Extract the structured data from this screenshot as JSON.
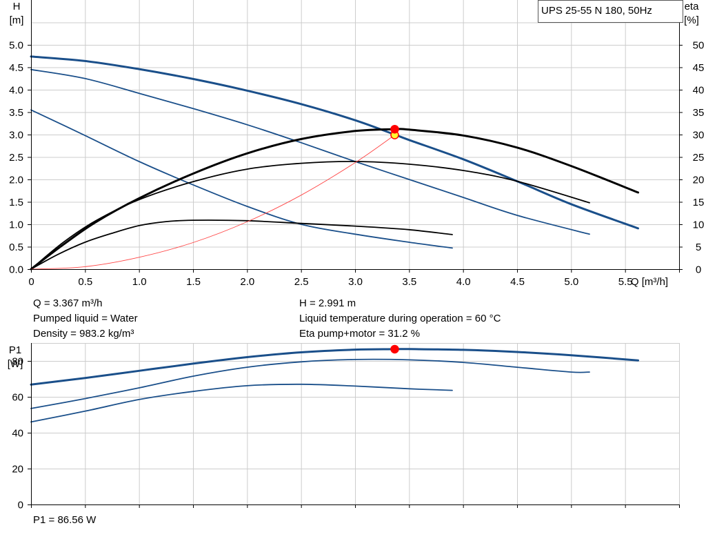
{
  "title": "UPS 25-55 N 180, 50Hz",
  "info": {
    "q": "Q = 3.367 m³/h",
    "liquid": "Pumped liquid = Water",
    "density": "Density = 983.2 kg/m³",
    "h": "H = 2.991 m",
    "temp": "Liquid temperature during operation = 60 °C",
    "eta": "Eta pump+motor = 31.2 %",
    "p1": "P1 = 86.56 W"
  },
  "chart_data": [
    {
      "type": "line",
      "xlabel": "Q [m³/h]",
      "ylabel": "H\n[m]",
      "y2label": "eta\n[%]",
      "xlim": [
        0,
        6
      ],
      "ylim": [
        0,
        5.0
      ],
      "y2lim": [
        0,
        50
      ],
      "xticks": [
        "0",
        "0.5",
        "1.0",
        "1.5",
        "2.0",
        "2.5",
        "3.0",
        "3.5",
        "4.0",
        "4.5",
        "5.0",
        "5.5"
      ],
      "yticks": [
        "0.0",
        "0.5",
        "1.0",
        "1.5",
        "2.0",
        "2.5",
        "3.0",
        "3.5",
        "4.0",
        "4.5",
        "5.0"
      ],
      "y2ticks": [
        "0",
        "5",
        "10",
        "15",
        "20",
        "25",
        "30",
        "35",
        "40",
        "45",
        "50"
      ],
      "grid": true,
      "series": [
        {
          "kind": "head",
          "axis": "left",
          "color": "#1a4f8a",
          "points": [
            [
              0,
              3.55
            ],
            [
              0.5,
              2.98
            ],
            [
              1.0,
              2.4
            ],
            [
              1.5,
              1.88
            ],
            [
              2.0,
              1.4
            ],
            [
              2.5,
              1.0
            ],
            [
              3.0,
              0.78
            ],
            [
              3.5,
              0.6
            ],
            [
              3.9,
              0.47
            ]
          ]
        },
        {
          "kind": "head",
          "axis": "left",
          "color": "#1a4f8a",
          "points": [
            [
              0,
              4.45
            ],
            [
              0.5,
              4.25
            ],
            [
              1.0,
              3.92
            ],
            [
              1.5,
              3.58
            ],
            [
              2.0,
              3.22
            ],
            [
              2.5,
              2.82
            ],
            [
              3.0,
              2.4
            ],
            [
              3.5,
              2.0
            ],
            [
              4.0,
              1.6
            ],
            [
              4.5,
              1.2
            ],
            [
              5.17,
              0.78
            ]
          ]
        },
        {
          "kind": "head",
          "axis": "left",
          "color": "#1a4f8a",
          "bold": true,
          "points": [
            [
              0,
              4.74
            ],
            [
              0.5,
              4.64
            ],
            [
              1.0,
              4.46
            ],
            [
              1.5,
              4.24
            ],
            [
              2.0,
              3.98
            ],
            [
              2.5,
              3.68
            ],
            [
              3.0,
              3.32
            ],
            [
              3.367,
              3.0
            ],
            [
              3.5,
              2.88
            ],
            [
              4.0,
              2.45
            ],
            [
              4.5,
              1.96
            ],
            [
              5.0,
              1.45
            ],
            [
              5.62,
              0.91
            ]
          ]
        },
        {
          "kind": "eta",
          "axis": "right",
          "color": "#000000",
          "points": [
            [
              0,
              0
            ],
            [
              0.25,
              3.3
            ],
            [
              0.5,
              6.0
            ],
            [
              0.75,
              8.0
            ],
            [
              1.0,
              9.7
            ],
            [
              1.25,
              10.6
            ],
            [
              1.5,
              10.9
            ],
            [
              2.0,
              10.8
            ],
            [
              2.5,
              10.2
            ],
            [
              3.0,
              9.6
            ],
            [
              3.5,
              8.8
            ],
            [
              3.9,
              7.7
            ]
          ]
        },
        {
          "kind": "eta",
          "axis": "right",
          "color": "#000000",
          "points": [
            [
              0,
              0
            ],
            [
              0.3,
              6.0
            ],
            [
              0.6,
              10.8
            ],
            [
              1.0,
              15.5
            ],
            [
              1.5,
              19.5
            ],
            [
              2.0,
              22.3
            ],
            [
              2.5,
              23.6
            ],
            [
              3.0,
              24.0
            ],
            [
              3.5,
              23.4
            ],
            [
              4.0,
              22.0
            ],
            [
              4.5,
              19.6
            ],
            [
              5.17,
              14.8
            ]
          ]
        },
        {
          "kind": "eta",
          "axis": "right",
          "color": "#000000",
          "bold": true,
          "points": [
            [
              0,
              0
            ],
            [
              0.3,
              5.5
            ],
            [
              0.6,
              10.5
            ],
            [
              1.0,
              15.8
            ],
            [
              1.5,
              21.3
            ],
            [
              2.0,
              25.8
            ],
            [
              2.5,
              29.0
            ],
            [
              3.0,
              30.8
            ],
            [
              3.367,
              31.2
            ],
            [
              3.5,
              31.1
            ],
            [
              4.0,
              29.8
            ],
            [
              4.5,
              27.1
            ],
            [
              5.0,
              23.0
            ],
            [
              5.62,
              17.1
            ]
          ]
        },
        {
          "kind": "system",
          "axis": "left",
          "color": "#ff4444",
          "points": [
            [
              0,
              0
            ],
            [
              0.5,
              0.055
            ],
            [
              1.0,
              0.264
            ],
            [
              1.5,
              0.593
            ],
            [
              2.0,
              1.055
            ],
            [
              2.5,
              1.649
            ],
            [
              3.0,
              2.374
            ],
            [
              3.367,
              2.991
            ]
          ]
        }
      ],
      "markers": [
        {
          "axis": "left",
          "x": 3.367,
          "y": 2.991,
          "fill": "#ffff33",
          "stroke": "#ff0000"
        },
        {
          "axis": "right",
          "x": 3.367,
          "y": 31.2,
          "fill": "#ff0000",
          "stroke": "#ff0000"
        }
      ]
    },
    {
      "type": "line",
      "ylabel": "P1\n[W]",
      "xlim": [
        0,
        6
      ],
      "ylim": [
        0,
        90
      ],
      "yticks": [
        "0",
        "20",
        "40",
        "60",
        "80"
      ],
      "grid": true,
      "series": [
        {
          "kind": "power",
          "color": "#1a4f8a",
          "points": [
            [
              0,
              46
            ],
            [
              0.5,
              52
            ],
            [
              1.0,
              58.5
            ],
            [
              1.5,
              63
            ],
            [
              2.0,
              66.2
            ],
            [
              2.5,
              67
            ],
            [
              3.0,
              66
            ],
            [
              3.5,
              64.5
            ],
            [
              3.9,
              63.6
            ]
          ]
        },
        {
          "kind": "power",
          "color": "#1a4f8a",
          "points": [
            [
              0,
              53.5
            ],
            [
              0.5,
              59
            ],
            [
              1.0,
              65
            ],
            [
              1.5,
              71.5
            ],
            [
              2.0,
              76.5
            ],
            [
              2.5,
              79.5
            ],
            [
              3.0,
              80.8
            ],
            [
              3.5,
              80.6
            ],
            [
              4.0,
              79.2
            ],
            [
              4.5,
              76.5
            ],
            [
              5.0,
              73.8
            ],
            [
              5.17,
              73.8
            ]
          ]
        },
        {
          "kind": "power",
          "color": "#1a4f8a",
          "bold": true,
          "points": [
            [
              0,
              66.8
            ],
            [
              0.5,
              70.5
            ],
            [
              1.0,
              74.5
            ],
            [
              1.5,
              78.5
            ],
            [
              2.0,
              82.1
            ],
            [
              2.5,
              84.8
            ],
            [
              3.0,
              86.3
            ],
            [
              3.367,
              86.56
            ],
            [
              3.5,
              86.6
            ],
            [
              4.0,
              86.2
            ],
            [
              4.5,
              85
            ],
            [
              5.0,
              83.2
            ],
            [
              5.62,
              80.3
            ]
          ]
        }
      ],
      "markers": [
        {
          "x": 3.367,
          "y": 86.56,
          "fill": "#ff0000",
          "stroke": "#ff0000"
        }
      ]
    }
  ]
}
